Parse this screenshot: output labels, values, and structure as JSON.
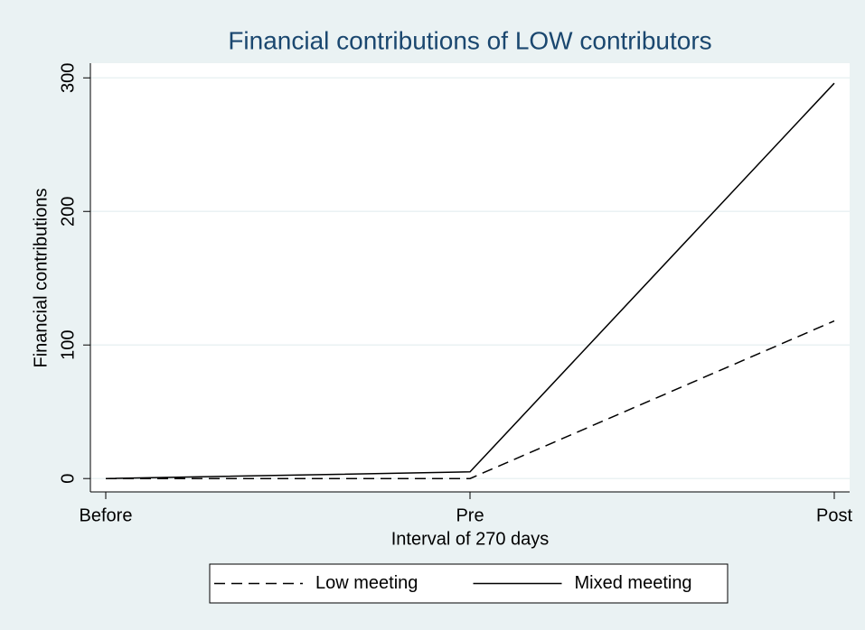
{
  "chart_data": {
    "type": "line",
    "title": "Financial contributions of LOW contributors",
    "xlabel": "Interval of 270 days",
    "ylabel": "Financial contributions",
    "categories": [
      "Before",
      "Pre",
      "Post"
    ],
    "series": [
      {
        "name": "Low meeting",
        "color": "#000000",
        "dash": "dashed",
        "values": [
          0,
          0,
          118
        ]
      },
      {
        "name": "Mixed meeting",
        "color": "#000000",
        "dash": "solid",
        "values": [
          0,
          5,
          296
        ]
      }
    ],
    "ylim": [
      -10,
      311
    ],
    "yticks": [
      0,
      100,
      200,
      300
    ],
    "grid": true,
    "legend": "bottom"
  }
}
